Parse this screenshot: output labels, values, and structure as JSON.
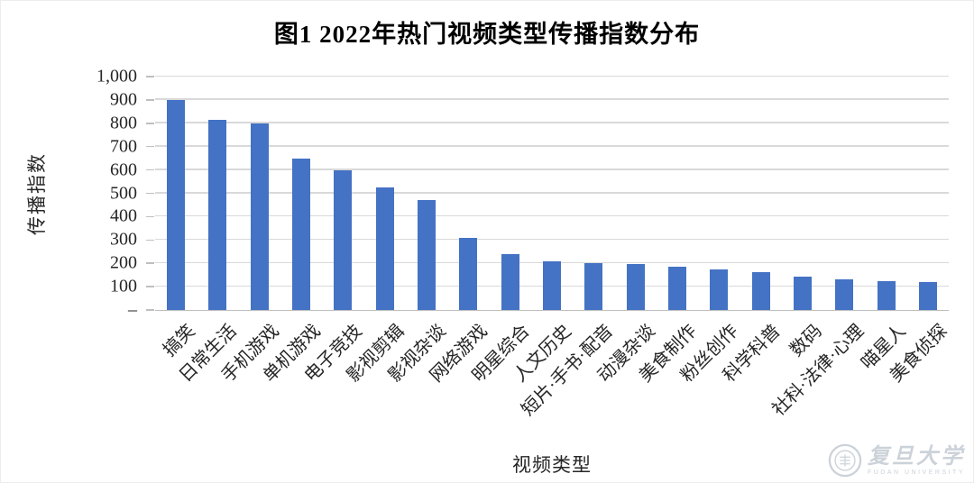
{
  "title": "图1 2022年热门视频类型传播指数分布",
  "chart_data": {
    "type": "bar",
    "title": "图1 2022年热门视频类型传播指数分布",
    "xlabel": "视频类型",
    "ylabel": "传播指数",
    "ylim": [
      0,
      1000
    ],
    "ytick_interval": 100,
    "ytick_labels_top_to_bottom": [
      "1,000",
      "900",
      "800",
      "700",
      "600",
      "500",
      "400",
      "300",
      "200",
      "100",
      "–"
    ],
    "grid": true,
    "legend": false,
    "bar_color": "#4472c4",
    "gridline_color": "#d9d9d9",
    "axis_line_color": "#bfbfbf",
    "categories": [
      "搞笑",
      "日常生活",
      "手机游戏",
      "单机游戏",
      "电子竞技",
      "影视剪辑",
      "影视杂谈",
      "网络游戏",
      "明星综合",
      "人文历史",
      "短片·手书·配音",
      "动漫杂谈",
      "美食制作",
      "粉丝创作",
      "科学科普",
      "数码",
      "社科·法律·心理",
      "喵星人",
      "美食侦探"
    ],
    "values": [
      900,
      815,
      800,
      650,
      600,
      525,
      470,
      310,
      238,
      210,
      202,
      198,
      184,
      172,
      163,
      142,
      133,
      124,
      118
    ]
  },
  "watermark": {
    "seal_icon": "fudan-university-seal",
    "name_cn": "复旦大学",
    "name_en": "FUDAN UNIVERSITY",
    "color": "#ccd2d9"
  }
}
